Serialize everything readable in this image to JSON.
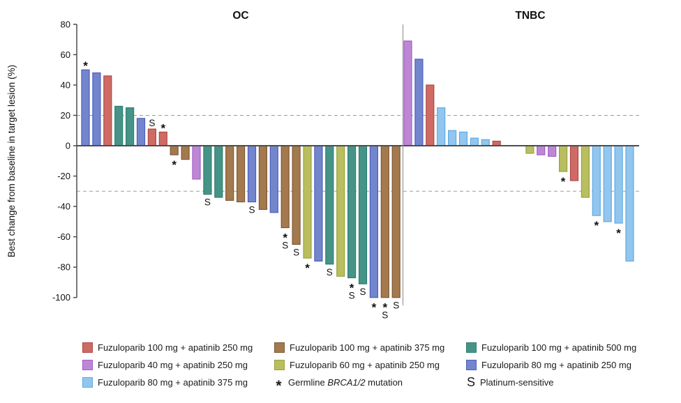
{
  "chart_data": {
    "type": "bar",
    "subtype": "waterfall",
    "ylabel": "Best change from baseline in target lesion (%)",
    "ylim": [
      -100,
      80
    ],
    "yticks": [
      80,
      60,
      40,
      20,
      0,
      -20,
      -40,
      -60,
      -80,
      -100
    ],
    "reference_lines_pct": [
      20,
      -30
    ],
    "grid": "off",
    "legend_position": "bottom",
    "groups": {
      "r": {
        "label": "Fuzuloparib 100 mg + apatinib 250 mg",
        "fill": "#CD6B64",
        "stroke": "#B04A43"
      },
      "br": {
        "label": "Fuzuloparib 100 mg + apatinib 375 mg",
        "fill": "#A4794E",
        "stroke": "#7D5A35"
      },
      "t": {
        "label": "Fuzuloparib 100 mg + apatinib 500 mg",
        "fill": "#459487",
        "stroke": "#2F7F72"
      },
      "o": {
        "label": "Fuzuloparib 40 mg + apatinib 250 mg",
        "fill": "#BD87D6",
        "stroke": "#A25FC4"
      },
      "g": {
        "label": "Fuzuloparib 60 mg + apatinib 250 mg",
        "fill": "#B9BE5F",
        "stroke": "#9AA33C"
      },
      "sb": {
        "label": "Fuzuloparib 80 mg + apatinib 250 mg",
        "fill": "#7386CD",
        "stroke": "#4A5EC0"
      },
      "lb": {
        "label": "Fuzuloparib 80 mg + apatinib 375 mg",
        "fill": "#92C6EE",
        "stroke": "#5FAAE4"
      }
    },
    "markers": {
      "star": {
        "symbol": "*",
        "label": "Germline BRCA1/2 mutation",
        "label_italic_part": "BRCA1/2"
      },
      "s": {
        "symbol": "S",
        "label": "Platinum-sensitive"
      }
    },
    "panels": [
      {
        "title": "OC",
        "bars": [
          {
            "group": "sb",
            "value": 50,
            "mark": "star"
          },
          {
            "group": "sb",
            "value": 48,
            "mark": null
          },
          {
            "group": "r",
            "value": 46,
            "mark": null
          },
          {
            "group": "t",
            "value": 26,
            "mark": null
          },
          {
            "group": "t",
            "value": 25,
            "mark": null
          },
          {
            "group": "sb",
            "value": 18,
            "mark": null
          },
          {
            "group": "r",
            "value": 11,
            "mark": "s"
          },
          {
            "group": "r",
            "value": 9,
            "mark": "star"
          },
          {
            "group": "br",
            "value": -6,
            "mark": "star"
          },
          {
            "group": "br",
            "value": -9,
            "mark": null
          },
          {
            "group": "o",
            "value": -22,
            "mark": null
          },
          {
            "group": "t",
            "value": -32,
            "mark": "s"
          },
          {
            "group": "t",
            "value": -34,
            "mark": null
          },
          {
            "group": "br",
            "value": -36,
            "mark": null
          },
          {
            "group": "br",
            "value": -37,
            "mark": null
          },
          {
            "group": "sb",
            "value": -37,
            "mark": "s"
          },
          {
            "group": "br",
            "value": -42,
            "mark": null
          },
          {
            "group": "sb",
            "value": -44,
            "mark": null
          },
          {
            "group": "br",
            "value": -54,
            "mark": "star_s"
          },
          {
            "group": "br",
            "value": -65,
            "mark": "s"
          },
          {
            "group": "g",
            "value": -74,
            "mark": "star"
          },
          {
            "group": "sb",
            "value": -76,
            "mark": null
          },
          {
            "group": "t",
            "value": -78,
            "mark": "s"
          },
          {
            "group": "g",
            "value": -86,
            "mark": null
          },
          {
            "group": "t",
            "value": -87,
            "mark": "star_s"
          },
          {
            "group": "t",
            "value": -91,
            "mark": "s"
          },
          {
            "group": "sb",
            "value": -100,
            "mark": "star"
          },
          {
            "group": "br",
            "value": -100,
            "mark": "star_s"
          },
          {
            "group": "br",
            "value": -100,
            "mark": "s"
          }
        ]
      },
      {
        "title": "TNBC",
        "bars": [
          {
            "group": "o",
            "value": 69,
            "mark": null
          },
          {
            "group": "sb",
            "value": 57,
            "mark": null
          },
          {
            "group": "r",
            "value": 40,
            "mark": null
          },
          {
            "group": "lb",
            "value": 25,
            "mark": null
          },
          {
            "group": "lb",
            "value": 10,
            "mark": null
          },
          {
            "group": "lb",
            "value": 9,
            "mark": null
          },
          {
            "group": "lb",
            "value": 5,
            "mark": null
          },
          {
            "group": "lb",
            "value": 4,
            "mark": null
          },
          {
            "group": "r",
            "value": 3,
            "mark": null
          },
          {
            "group": null,
            "value": 0,
            "mark": null
          },
          {
            "group": null,
            "value": 0,
            "mark": null
          },
          {
            "group": "g",
            "value": -5,
            "mark": null
          },
          {
            "group": "o",
            "value": -6,
            "mark": null
          },
          {
            "group": "o",
            "value": -7,
            "mark": null
          },
          {
            "group": "g",
            "value": -17,
            "mark": "star"
          },
          {
            "group": "r",
            "value": -23,
            "mark": null
          },
          {
            "group": "g",
            "value": -34,
            "mark": null
          },
          {
            "group": "lb",
            "value": -46,
            "mark": "star"
          },
          {
            "group": "lb",
            "value": -50,
            "mark": null
          },
          {
            "group": "lb",
            "value": -51,
            "mark": "star"
          },
          {
            "group": "lb",
            "value": -76,
            "mark": null
          }
        ]
      }
    ]
  },
  "legend": {
    "columns": [
      [
        {
          "type": "swatch",
          "group": "r"
        },
        {
          "type": "swatch",
          "group": "o"
        },
        {
          "type": "swatch",
          "group": "lb"
        }
      ],
      [
        {
          "type": "swatch",
          "group": "br"
        },
        {
          "type": "swatch",
          "group": "g"
        },
        {
          "type": "marker",
          "marker": "star"
        }
      ],
      [
        {
          "type": "swatch",
          "group": "t"
        },
        {
          "type": "swatch",
          "group": "sb"
        },
        {
          "type": "marker",
          "marker": "s"
        }
      ]
    ]
  }
}
